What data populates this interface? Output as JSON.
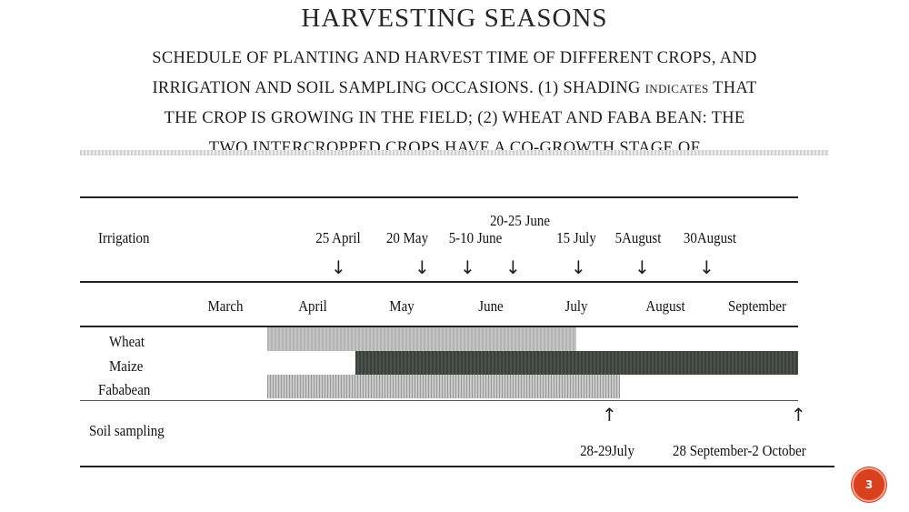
{
  "page": {
    "title": "HARVESTING SEASONS",
    "subtitle_lines": [
      "SCHEDULE OF PLANTING AND HARVEST TIME OF DIFFERENT CROPS, AND",
      "IRRIGATION AND SOIL SAMPLING OCCASIONS. (1) SHADING ",
      "INDICATES",
      " THAT",
      "THE CROP IS GROWING IN THE FIELD; (2) WHEAT AND FABA BEAN: THE",
      "TWO INTERCROPPED CROPS HAVE A CO-GROWTH STAGE OF"
    ],
    "slide_number": "3"
  },
  "diagram": {
    "irrigation_label": "Irrigation",
    "irrigation_dates": [
      "25 April",
      "20 May",
      "5-10 June",
      "20-25 June",
      "15 July",
      "5August",
      "30August"
    ],
    "months": [
      "March",
      "April",
      "May",
      "June",
      "July",
      "August",
      "September"
    ],
    "crops": [
      {
        "name": "Wheat",
        "color": "#bdbdbd"
      },
      {
        "name": "Maize",
        "color": "#454a46"
      },
      {
        "name": "Fababean",
        "color": "#b5b5b5"
      }
    ],
    "soil_sampling_label": "Soil sampling",
    "soil_sampling_dates": [
      "28-29July",
      "28 September-2 October"
    ]
  }
}
